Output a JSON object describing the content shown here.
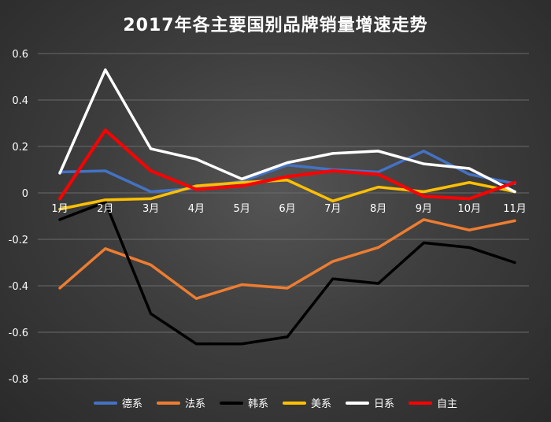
{
  "chart_data": {
    "type": "line",
    "title": "2017年各主要国别品牌销量增速走势",
    "categories": [
      "1月",
      "2月",
      "3月",
      "4月",
      "5月",
      "6月",
      "7月",
      "8月",
      "9月",
      "10月",
      "11月"
    ],
    "ylim": [
      -0.8,
      0.6
    ],
    "yticks": [
      "0.6",
      "0.4",
      "0.2",
      "0",
      "-0.2",
      "-0.4",
      "-0.6",
      "-0.8"
    ],
    "grid": true,
    "legend_position": "bottom",
    "series": [
      {
        "name": "德系",
        "color": "#4472c4",
        "values": [
          0.09,
          0.095,
          0.005,
          0.02,
          0.05,
          0.12,
          0.1,
          0.09,
          0.18,
          0.08,
          0.04
        ]
      },
      {
        "name": "法系",
        "color": "#ed7d31",
        "values": [
          -0.41,
          -0.24,
          -0.31,
          -0.455,
          -0.395,
          -0.41,
          -0.295,
          -0.235,
          -0.115,
          -0.16,
          -0.12
        ]
      },
      {
        "name": "韩系",
        "color": "#000000",
        "values": [
          -0.115,
          -0.04,
          -0.52,
          -0.65,
          -0.65,
          -0.62,
          -0.37,
          -0.39,
          -0.215,
          -0.235,
          -0.3
        ]
      },
      {
        "name": "美系",
        "color": "#ffc000",
        "values": [
          -0.07,
          -0.03,
          -0.025,
          0.03,
          0.045,
          0.055,
          -0.035,
          0.025,
          0.005,
          0.045,
          0.005
        ]
      },
      {
        "name": "日系",
        "color": "#ffffff",
        "values": [
          0.085,
          0.53,
          0.19,
          0.145,
          0.06,
          0.13,
          0.17,
          0.18,
          0.125,
          0.105,
          0.005
        ]
      },
      {
        "name": "自主",
        "color": "#ff0000",
        "values": [
          -0.025,
          0.27,
          0.095,
          0.015,
          0.03,
          0.07,
          0.095,
          0.08,
          -0.015,
          -0.025,
          0.045
        ]
      }
    ]
  }
}
